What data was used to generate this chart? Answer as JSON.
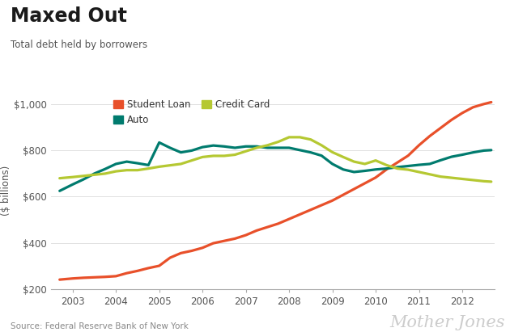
{
  "title": "Maxed Out",
  "subtitle": "Total debt held by borrowers",
  "ylabel": "($ billions)",
  "source": "Source: Federal Reserve Bank of New York",
  "watermark": "Mother Jones",
  "xlim": [
    2002.5,
    2012.75
  ],
  "ylim": [
    200,
    1050
  ],
  "yticks": [
    200,
    400,
    600,
    800,
    1000
  ],
  "ytick_labels": [
    "$200",
    "$400",
    "$600",
    "$800",
    "$1,000"
  ],
  "xticks": [
    2003,
    2004,
    2005,
    2006,
    2007,
    2008,
    2009,
    2010,
    2011,
    2012
  ],
  "background_color": "#ffffff",
  "student_loan": {
    "label": "Student Loan",
    "color": "#e8502a",
    "x": [
      2002.7,
      2003.0,
      2003.25,
      2003.5,
      2003.75,
      2004.0,
      2004.25,
      2004.5,
      2004.75,
      2005.0,
      2005.25,
      2005.5,
      2005.75,
      2006.0,
      2006.25,
      2006.5,
      2006.75,
      2007.0,
      2007.25,
      2007.5,
      2007.75,
      2008.0,
      2008.25,
      2008.5,
      2008.75,
      2009.0,
      2009.25,
      2009.5,
      2009.75,
      2010.0,
      2010.25,
      2010.5,
      2010.75,
      2011.0,
      2011.25,
      2011.5,
      2011.75,
      2012.0,
      2012.25,
      2012.5,
      2012.67
    ],
    "y": [
      240,
      245,
      248,
      250,
      252,
      255,
      268,
      278,
      290,
      300,
      335,
      355,
      365,
      378,
      398,
      408,
      418,
      433,
      453,
      468,
      483,
      503,
      523,
      543,
      563,
      583,
      608,
      633,
      658,
      683,
      718,
      748,
      778,
      823,
      863,
      898,
      933,
      963,
      988,
      1002,
      1010
    ]
  },
  "auto": {
    "label": "Auto",
    "color": "#007b6e",
    "x": [
      2002.7,
      2003.0,
      2003.25,
      2003.5,
      2003.75,
      2004.0,
      2004.25,
      2004.5,
      2004.75,
      2005.0,
      2005.25,
      2005.5,
      2005.75,
      2006.0,
      2006.25,
      2006.5,
      2006.75,
      2007.0,
      2007.25,
      2007.5,
      2007.75,
      2008.0,
      2008.25,
      2008.5,
      2008.75,
      2009.0,
      2009.25,
      2009.5,
      2009.75,
      2010.0,
      2010.25,
      2010.5,
      2010.75,
      2011.0,
      2011.25,
      2011.5,
      2011.75,
      2012.0,
      2012.25,
      2012.5,
      2012.67
    ],
    "y": [
      625,
      653,
      675,
      700,
      720,
      742,
      752,
      745,
      737,
      835,
      812,
      792,
      800,
      815,
      822,
      818,
      812,
      818,
      818,
      812,
      812,
      812,
      802,
      792,
      778,
      742,
      718,
      707,
      712,
      718,
      722,
      728,
      733,
      738,
      742,
      758,
      773,
      782,
      792,
      800,
      802
    ]
  },
  "credit_card": {
    "label": "Credit Card",
    "color": "#b5c832",
    "x": [
      2002.7,
      2003.0,
      2003.25,
      2003.5,
      2003.75,
      2004.0,
      2004.25,
      2004.5,
      2004.75,
      2005.0,
      2005.25,
      2005.5,
      2005.75,
      2006.0,
      2006.25,
      2006.5,
      2006.75,
      2007.0,
      2007.25,
      2007.5,
      2007.75,
      2008.0,
      2008.25,
      2008.5,
      2008.75,
      2009.0,
      2009.25,
      2009.5,
      2009.75,
      2010.0,
      2010.25,
      2010.5,
      2010.75,
      2011.0,
      2011.25,
      2011.5,
      2011.75,
      2012.0,
      2012.25,
      2012.5,
      2012.67
    ],
    "y": [
      680,
      685,
      690,
      695,
      700,
      710,
      715,
      715,
      722,
      730,
      736,
      742,
      757,
      772,
      777,
      777,
      782,
      797,
      812,
      823,
      838,
      858,
      858,
      848,
      823,
      793,
      772,
      752,
      742,
      757,
      737,
      722,
      717,
      707,
      697,
      687,
      682,
      677,
      672,
      667,
      665
    ]
  },
  "line_width": 2.3
}
